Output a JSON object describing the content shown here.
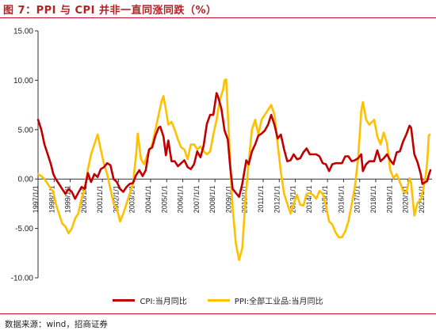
{
  "title": "图 7：PPI 与 CPI 并非一直同涨同跌（%）",
  "source": "数据来源：wind，招商证券",
  "colors": {
    "cpi": "#C00000",
    "ppi": "#FFC000",
    "accent": "#C8102E"
  },
  "chart_data": {
    "type": "line",
    "title": "图 7：PPI 与 CPI 并非一直同涨同跌（%）",
    "xlabel": "",
    "ylabel": "",
    "ylim": [
      -10,
      15
    ],
    "yticks": [
      "15.00",
      "10.00",
      "5.00",
      "0.00",
      "-5.00",
      "-10.00"
    ],
    "yticks_values": [
      15,
      10,
      5,
      0,
      -5,
      -10
    ],
    "xlim": [
      1997.0,
      2021.5
    ],
    "xticks": [
      "1997/1/1",
      "1998/1/1",
      "1999/1/1",
      "2000/1/1",
      "2001/1/1",
      "2002/1/1",
      "2003/1/1",
      "2004/1/1",
      "2005/1/1",
      "2006/1/1",
      "2007/1/1",
      "2008/1/1",
      "2009/1/1",
      "2010/1/1",
      "2011/1/1",
      "2012/1/1",
      "2013/1/1",
      "2014/1/1",
      "2015/1/1",
      "2016/1/1",
      "2017/1/1",
      "2018/1/1",
      "2019/1/1",
      "2020/1/1",
      "2021/1/1"
    ],
    "xticks_values": [
      1997,
      1998,
      1999,
      2000,
      2001,
      2002,
      2003,
      2004,
      2005,
      2006,
      2007,
      2008,
      2009,
      2010,
      2011,
      2012,
      2013,
      2014,
      2015,
      2016,
      2017,
      2018,
      2019,
      2020,
      2021
    ],
    "grid": false,
    "legend_position": "bottom",
    "series": [
      {
        "name": "CPI:当月同比",
        "color": "#C00000",
        "points": [
          [
            1997.0,
            6.0
          ],
          [
            1997.2,
            5.0
          ],
          [
            1997.4,
            3.5
          ],
          [
            1997.6,
            2.5
          ],
          [
            1997.8,
            1.5
          ],
          [
            1997.95,
            0.5
          ],
          [
            1998.1,
            0.0
          ],
          [
            1998.3,
            -0.5
          ],
          [
            1998.5,
            -1.0
          ],
          [
            1998.7,
            -1.5
          ],
          [
            1998.9,
            -1.0
          ],
          [
            1999.1,
            -1.3
          ],
          [
            1999.3,
            -2.0
          ],
          [
            1999.5,
            -1.4
          ],
          [
            1999.7,
            -0.8
          ],
          [
            1999.9,
            -1.0
          ],
          [
            2000.1,
            0.6
          ],
          [
            2000.3,
            -0.3
          ],
          [
            2000.5,
            0.5
          ],
          [
            2000.7,
            0.2
          ],
          [
            2000.9,
            1.0
          ],
          [
            2001.1,
            1.2
          ],
          [
            2001.3,
            1.6
          ],
          [
            2001.5,
            1.4
          ],
          [
            2001.7,
            0.0
          ],
          [
            2001.9,
            -0.3
          ],
          [
            2002.1,
            -1.0
          ],
          [
            2002.3,
            -1.3
          ],
          [
            2002.5,
            -0.8
          ],
          [
            2002.7,
            -0.5
          ],
          [
            2002.9,
            -0.4
          ],
          [
            2003.1,
            0.4
          ],
          [
            2003.3,
            0.9
          ],
          [
            2003.5,
            0.3
          ],
          [
            2003.7,
            0.9
          ],
          [
            2003.9,
            3.0
          ],
          [
            2004.1,
            3.2
          ],
          [
            2004.3,
            4.4
          ],
          [
            2004.5,
            5.2
          ],
          [
            2004.6,
            5.3
          ],
          [
            2004.8,
            4.3
          ],
          [
            2004.95,
            2.4
          ],
          [
            2005.1,
            3.9
          ],
          [
            2005.3,
            1.8
          ],
          [
            2005.5,
            1.8
          ],
          [
            2005.7,
            1.3
          ],
          [
            2005.9,
            1.6
          ],
          [
            2006.1,
            1.9
          ],
          [
            2006.3,
            1.2
          ],
          [
            2006.5,
            1.0
          ],
          [
            2006.7,
            1.5
          ],
          [
            2006.9,
            2.8
          ],
          [
            2007.1,
            2.2
          ],
          [
            2007.3,
            3.4
          ],
          [
            2007.5,
            5.6
          ],
          [
            2007.7,
            6.5
          ],
          [
            2007.9,
            6.5
          ],
          [
            2008.1,
            8.7
          ],
          [
            2008.2,
            8.3
          ],
          [
            2008.4,
            7.1
          ],
          [
            2008.6,
            4.9
          ],
          [
            2008.8,
            4.0
          ],
          [
            2008.95,
            1.2
          ],
          [
            2009.1,
            -1.0
          ],
          [
            2009.3,
            -1.4
          ],
          [
            2009.5,
            -1.8
          ],
          [
            2009.7,
            -0.5
          ],
          [
            2009.95,
            1.9
          ],
          [
            2010.1,
            1.5
          ],
          [
            2010.3,
            2.8
          ],
          [
            2010.5,
            3.5
          ],
          [
            2010.7,
            4.4
          ],
          [
            2010.9,
            4.6
          ],
          [
            2011.1,
            4.9
          ],
          [
            2011.3,
            5.5
          ],
          [
            2011.5,
            6.5
          ],
          [
            2011.7,
            5.5
          ],
          [
            2011.9,
            4.1
          ],
          [
            2012.1,
            4.5
          ],
          [
            2012.3,
            3.0
          ],
          [
            2012.5,
            1.8
          ],
          [
            2012.7,
            1.9
          ],
          [
            2012.9,
            2.5
          ],
          [
            2013.1,
            2.0
          ],
          [
            2013.3,
            2.1
          ],
          [
            2013.5,
            2.7
          ],
          [
            2013.7,
            3.1
          ],
          [
            2013.9,
            2.5
          ],
          [
            2014.1,
            2.5
          ],
          [
            2014.3,
            2.5
          ],
          [
            2014.5,
            2.3
          ],
          [
            2014.7,
            1.6
          ],
          [
            2014.9,
            1.5
          ],
          [
            2015.1,
            0.8
          ],
          [
            2015.3,
            1.5
          ],
          [
            2015.5,
            1.6
          ],
          [
            2015.7,
            1.6
          ],
          [
            2015.9,
            1.6
          ],
          [
            2016.1,
            2.3
          ],
          [
            2016.3,
            2.3
          ],
          [
            2016.5,
            1.8
          ],
          [
            2016.7,
            1.9
          ],
          [
            2016.9,
            2.1
          ],
          [
            2017.1,
            2.5
          ],
          [
            2017.2,
            0.8
          ],
          [
            2017.4,
            1.5
          ],
          [
            2017.6,
            1.8
          ],
          [
            2017.9,
            1.8
          ],
          [
            2018.1,
            2.9
          ],
          [
            2018.3,
            1.8
          ],
          [
            2018.5,
            2.1
          ],
          [
            2018.7,
            2.5
          ],
          [
            2018.9,
            1.9
          ],
          [
            2019.1,
            1.5
          ],
          [
            2019.3,
            2.7
          ],
          [
            2019.5,
            2.8
          ],
          [
            2019.7,
            3.8
          ],
          [
            2019.9,
            4.5
          ],
          [
            2020.1,
            5.4
          ],
          [
            2020.2,
            5.2
          ],
          [
            2020.4,
            2.5
          ],
          [
            2020.6,
            1.7
          ],
          [
            2020.8,
            0.5
          ],
          [
            2020.9,
            -0.5
          ],
          [
            2021.1,
            -0.3
          ],
          [
            2021.2,
            -0.2
          ],
          [
            2021.3,
            0.4
          ],
          [
            2021.4,
            0.9
          ]
        ]
      },
      {
        "name": "PPI:全部工业品:当月同比",
        "color": "#FFC000",
        "points": [
          [
            1997.0,
            0.5
          ],
          [
            1997.2,
            0.3
          ],
          [
            1997.4,
            0.0
          ],
          [
            1997.6,
            -0.5
          ],
          [
            1997.8,
            -1.0
          ],
          [
            1997.95,
            -1.3
          ],
          [
            1998.1,
            -2.5
          ],
          [
            1998.3,
            -3.5
          ],
          [
            1998.5,
            -4.5
          ],
          [
            1998.7,
            -4.8
          ],
          [
            1998.9,
            -5.5
          ],
          [
            1999.1,
            -5.0
          ],
          [
            1999.3,
            -4.0
          ],
          [
            1999.5,
            -3.5
          ],
          [
            1999.7,
            -2.0
          ],
          [
            1999.9,
            -1.0
          ],
          [
            2000.1,
            1.0
          ],
          [
            2000.3,
            2.5
          ],
          [
            2000.5,
            3.5
          ],
          [
            2000.7,
            4.5
          ],
          [
            2000.9,
            3.0
          ],
          [
            2001.1,
            1.5
          ],
          [
            2001.3,
            0.5
          ],
          [
            2001.5,
            -1.0
          ],
          [
            2001.7,
            -2.5
          ],
          [
            2001.9,
            -3.0
          ],
          [
            2002.1,
            -4.3
          ],
          [
            2002.3,
            -3.5
          ],
          [
            2002.5,
            -2.5
          ],
          [
            2002.7,
            -1.5
          ],
          [
            2002.9,
            -0.5
          ],
          [
            2003.1,
            2.5
          ],
          [
            2003.2,
            4.6
          ],
          [
            2003.4,
            2.0
          ],
          [
            2003.6,
            1.5
          ],
          [
            2003.8,
            2.5
          ],
          [
            2004.1,
            3.5
          ],
          [
            2004.3,
            5.0
          ],
          [
            2004.5,
            6.5
          ],
          [
            2004.7,
            8.0
          ],
          [
            2004.8,
            8.4
          ],
          [
            2004.95,
            7.0
          ],
          [
            2005.1,
            5.5
          ],
          [
            2005.3,
            5.8
          ],
          [
            2005.5,
            5.0
          ],
          [
            2005.7,
            4.0
          ],
          [
            2005.9,
            3.2
          ],
          [
            2006.1,
            3.0
          ],
          [
            2006.3,
            2.0
          ],
          [
            2006.5,
            3.5
          ],
          [
            2006.7,
            3.5
          ],
          [
            2006.9,
            3.0
          ],
          [
            2007.1,
            3.3
          ],
          [
            2007.3,
            2.8
          ],
          [
            2007.5,
            2.5
          ],
          [
            2007.7,
            2.8
          ],
          [
            2007.9,
            4.5
          ],
          [
            2008.1,
            6.0
          ],
          [
            2008.3,
            8.0
          ],
          [
            2008.5,
            9.0
          ],
          [
            2008.6,
            10.0
          ],
          [
            2008.7,
            10.1
          ],
          [
            2008.85,
            5.0
          ],
          [
            2009.0,
            0.0
          ],
          [
            2009.1,
            -3.0
          ],
          [
            2009.3,
            -6.5
          ],
          [
            2009.5,
            -8.2
          ],
          [
            2009.7,
            -7.0
          ],
          [
            2009.9,
            -2.0
          ],
          [
            2010.1,
            1.7
          ],
          [
            2010.3,
            5.0
          ],
          [
            2010.5,
            6.0
          ],
          [
            2010.7,
            4.5
          ],
          [
            2010.9,
            6.0
          ],
          [
            2011.1,
            6.5
          ],
          [
            2011.3,
            7.0
          ],
          [
            2011.5,
            7.5
          ],
          [
            2011.7,
            6.5
          ],
          [
            2011.9,
            3.5
          ],
          [
            2012.1,
            0.7
          ],
          [
            2012.3,
            -1.5
          ],
          [
            2012.5,
            -2.5
          ],
          [
            2012.7,
            -3.5
          ],
          [
            2012.9,
            -2.5
          ],
          [
            2013.1,
            -1.6
          ],
          [
            2013.3,
            -2.6
          ],
          [
            2013.5,
            -2.7
          ],
          [
            2013.7,
            -1.5
          ],
          [
            2013.9,
            -1.4
          ],
          [
            2014.1,
            -1.6
          ],
          [
            2014.3,
            -2.0
          ],
          [
            2014.5,
            -1.2
          ],
          [
            2014.7,
            -1.5
          ],
          [
            2014.9,
            -2.7
          ],
          [
            2015.1,
            -4.3
          ],
          [
            2015.3,
            -4.6
          ],
          [
            2015.5,
            -5.4
          ],
          [
            2015.7,
            -5.9
          ],
          [
            2015.9,
            -5.9
          ],
          [
            2016.1,
            -5.3
          ],
          [
            2016.3,
            -4.3
          ],
          [
            2016.5,
            -2.6
          ],
          [
            2016.7,
            -0.8
          ],
          [
            2016.9,
            2.0
          ],
          [
            2017.1,
            6.9
          ],
          [
            2017.2,
            7.8
          ],
          [
            2017.4,
            6.0
          ],
          [
            2017.6,
            5.5
          ],
          [
            2017.9,
            6.0
          ],
          [
            2018.1,
            4.3
          ],
          [
            2018.3,
            3.5
          ],
          [
            2018.5,
            4.7
          ],
          [
            2018.7,
            3.6
          ],
          [
            2018.9,
            0.9
          ],
          [
            2019.1,
            0.1
          ],
          [
            2019.3,
            0.5
          ],
          [
            2019.5,
            -0.3
          ],
          [
            2019.7,
            -1.2
          ],
          [
            2019.9,
            -1.4
          ],
          [
            2020.1,
            0.1
          ],
          [
            2020.2,
            -0.4
          ],
          [
            2020.4,
            -3.7
          ],
          [
            2020.6,
            -2.4
          ],
          [
            2020.8,
            -2.1
          ],
          [
            2020.9,
            -1.5
          ],
          [
            2021.1,
            0.3
          ],
          [
            2021.2,
            1.7
          ],
          [
            2021.3,
            4.4
          ],
          [
            2021.35,
            4.5
          ]
        ]
      }
    ]
  }
}
